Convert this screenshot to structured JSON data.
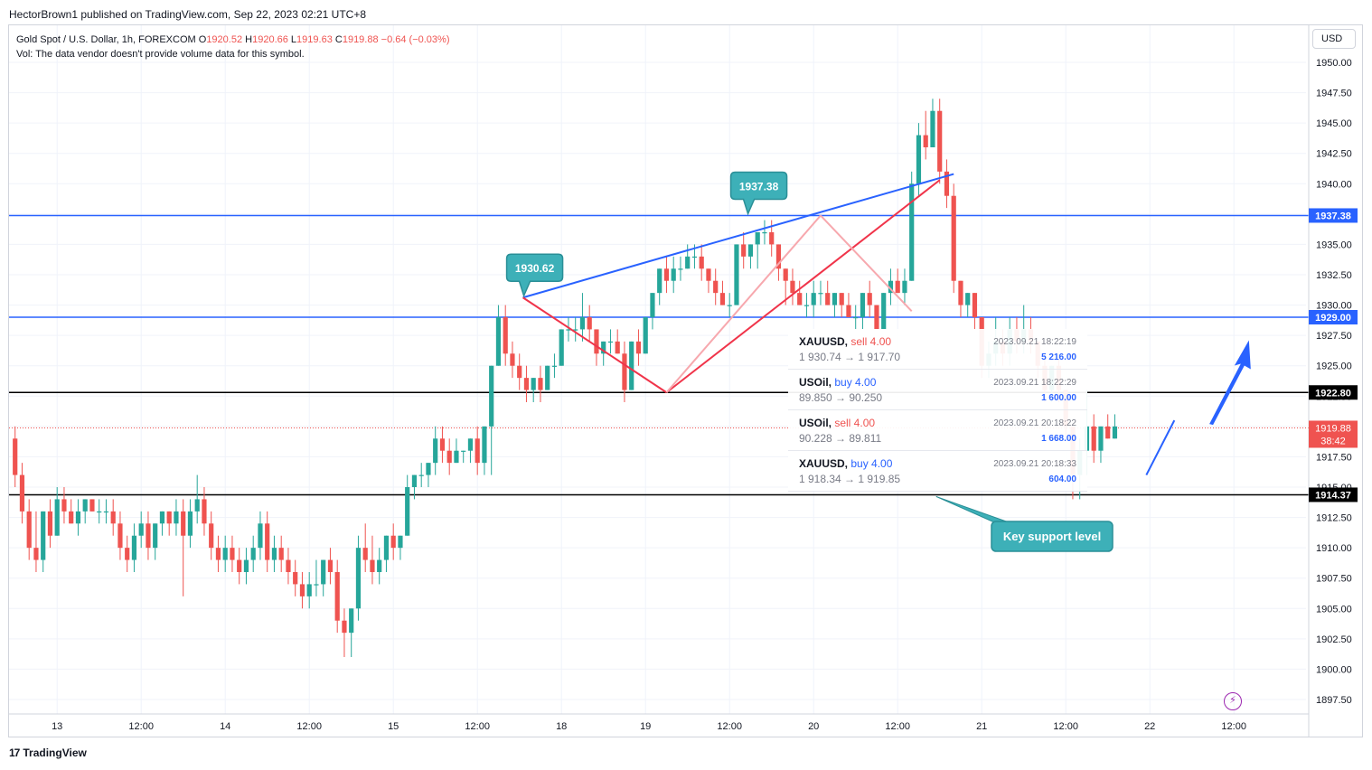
{
  "header": {
    "text": "HectorBrown1 published on TradingView.com, Sep 22, 2023 02:21 UTC+8"
  },
  "legend": {
    "symbol": "Gold Spot / U.S. Dollar, 1h, FOREXCOM",
    "open_label": "O",
    "open": "1920.52",
    "high_label": "H",
    "high": "1920.66",
    "low_label": "L",
    "low": "1919.63",
    "close_label": "C",
    "close": "1919.88",
    "change": "−0.64 (−0.03%)",
    "vol": "Vol: The data vendor doesn't provide volume data for this symbol."
  },
  "currency": "USD",
  "footer": {
    "brand": "TradingView",
    "mark": "17"
  },
  "colors": {
    "up": "#26a69a",
    "down": "#ef5350",
    "blue": "#2962ff",
    "teal_callout": "#3db0b8"
  },
  "chart_data": {
    "type": "candlestick",
    "timeframe": "1h",
    "y_range": [
      1896.0,
      1952.0
    ],
    "y_ticks": [
      "1950.00",
      "1947.50",
      "1945.00",
      "1942.50",
      "1940.00",
      "1937.50",
      "1935.00",
      "1932.50",
      "1930.00",
      "1927.50",
      "1925.00",
      "1922.50",
      "1920.00",
      "1917.50",
      "1915.00",
      "1912.50",
      "1910.00",
      "1907.50",
      "1905.00",
      "1902.50",
      "1900.00",
      "1897.50"
    ],
    "x_labels": [
      {
        "label": "13",
        "t": 6
      },
      {
        "label": "12:00",
        "t": 18
      },
      {
        "label": "14",
        "t": 30
      },
      {
        "label": "12:00",
        "t": 42
      },
      {
        "label": "15",
        "t": 54
      },
      {
        "label": "12:00",
        "t": 66
      },
      {
        "label": "18",
        "t": 78
      },
      {
        "label": "19",
        "t": 90
      },
      {
        "label": "12:00",
        "t": 102
      },
      {
        "label": "20",
        "t": 114
      },
      {
        "label": "12:00",
        "t": 126
      },
      {
        "label": "21",
        "t": 138
      },
      {
        "label": "12:00",
        "t": 150
      },
      {
        "label": "22",
        "t": 162
      },
      {
        "label": "12:00",
        "t": 174
      }
    ],
    "candles": [
      [
        1919,
        1920,
        1915,
        1916
      ],
      [
        1916,
        1917,
        1912,
        1913
      ],
      [
        1913,
        1914,
        1909,
        1910
      ],
      [
        1910,
        1913,
        1908,
        1909
      ],
      [
        1909,
        1913,
        1908,
        1913
      ],
      [
        1913,
        1914,
        1910,
        1911
      ],
      [
        1911,
        1915,
        1911,
        1914
      ],
      [
        1914,
        1915,
        1912,
        1913
      ],
      [
        1913,
        1914,
        1912,
        1912
      ],
      [
        1912,
        1914,
        1911,
        1913
      ],
      [
        1913,
        1914,
        1912,
        1914
      ],
      [
        1914,
        1914,
        1913,
        1913
      ],
      [
        1913,
        1914,
        1912,
        1913
      ],
      [
        1913,
        1914,
        1912,
        1913
      ],
      [
        1913,
        1914,
        1911,
        1912
      ],
      [
        1912,
        1913,
        1909,
        1910
      ],
      [
        1910,
        1911,
        1908,
        1909
      ],
      [
        1909,
        1912,
        1908,
        1911
      ],
      [
        1911,
        1913,
        1910,
        1912
      ],
      [
        1912,
        1913,
        1909,
        1910
      ],
      [
        1910,
        1912,
        1909,
        1912
      ],
      [
        1912,
        1913,
        1911,
        1913
      ],
      [
        1913,
        1913,
        1911,
        1912
      ],
      [
        1912,
        1914,
        1911,
        1913
      ],
      [
        1913,
        1914,
        1906,
        1911
      ],
      [
        1911,
        1914,
        1910,
        1913
      ],
      [
        1913,
        1916,
        1912,
        1914
      ],
      [
        1914,
        1915,
        1911,
        1912
      ],
      [
        1912,
        1913,
        1909,
        1910
      ],
      [
        1910,
        1911,
        1908,
        1909
      ],
      [
        1909,
        1911,
        1908,
        1910
      ],
      [
        1910,
        1911,
        1908,
        1909
      ],
      [
        1909,
        1910,
        1907,
        1908
      ],
      [
        1908,
        1910,
        1907,
        1909
      ],
      [
        1909,
        1911,
        1908,
        1910
      ],
      [
        1910,
        1913,
        1909,
        1912
      ],
      [
        1912,
        1913,
        1908,
        1909
      ],
      [
        1909,
        1911,
        1908,
        1910
      ],
      [
        1910,
        1911,
        1908,
        1909
      ],
      [
        1909,
        1910,
        1907,
        1908
      ],
      [
        1908,
        1909,
        1906,
        1907
      ],
      [
        1907,
        1908,
        1905,
        1906
      ],
      [
        1906,
        1908,
        1905,
        1907
      ],
      [
        1907,
        1909,
        1906,
        1907
      ],
      [
        1907,
        1909,
        1906,
        1909
      ],
      [
        1909,
        1910,
        1907,
        1908
      ],
      [
        1908,
        1909,
        1903,
        1904
      ],
      [
        1904,
        1905,
        1901,
        1903
      ],
      [
        1903,
        1905,
        1901,
        1905
      ],
      [
        1905,
        1911,
        1904,
        1910
      ],
      [
        1910,
        1912,
        1908,
        1909
      ],
      [
        1909,
        1911,
        1907,
        1908
      ],
      [
        1908,
        1910,
        1907,
        1909
      ],
      [
        1909,
        1911,
        1908,
        1911
      ],
      [
        1911,
        1912,
        1909,
        1910
      ],
      [
        1910,
        1911,
        1909,
        1911
      ],
      [
        1911,
        1916,
        1911,
        1915
      ],
      [
        1915,
        1916,
        1914,
        1916
      ],
      [
        1916,
        1917,
        1915,
        1916
      ],
      [
        1916,
        1917,
        1915,
        1917
      ],
      [
        1917,
        1920,
        1916,
        1919
      ],
      [
        1919,
        1920,
        1917,
        1918
      ],
      [
        1918,
        1919,
        1916,
        1917
      ],
      [
        1917,
        1919,
        1917,
        1918
      ],
      [
        1918,
        1918,
        1917,
        1918
      ],
      [
        1918,
        1919,
        1917,
        1919
      ],
      [
        1919,
        1920,
        1916,
        1917
      ],
      [
        1917,
        1920,
        1916,
        1920
      ],
      [
        1920,
        1925,
        1916,
        1925
      ],
      [
        1925,
        1930,
        1925,
        1929
      ],
      [
        1929,
        1930,
        1925,
        1926
      ],
      [
        1926,
        1927,
        1924,
        1925
      ],
      [
        1925,
        1926,
        1923,
        1924
      ],
      [
        1924,
        1925,
        1922,
        1923
      ],
      [
        1923,
        1924,
        1922,
        1924
      ],
      [
        1924,
        1925,
        1922,
        1923
      ],
      [
        1923,
        1925,
        1923,
        1925
      ],
      [
        1925,
        1926,
        1924,
        1925
      ],
      [
        1925,
        1928,
        1925,
        1928
      ],
      [
        1928,
        1929,
        1927,
        1928
      ],
      [
        1928,
        1929,
        1927,
        1928
      ],
      [
        1928,
        1931,
        1927,
        1929
      ],
      [
        1929,
        1930,
        1927,
        1928
      ],
      [
        1928,
        1928,
        1925,
        1926
      ],
      [
        1926,
        1927,
        1925,
        1927
      ],
      [
        1927,
        1928,
        1926,
        1927
      ],
      [
        1927,
        1928,
        1926,
        1926
      ],
      [
        1926,
        1927,
        1922,
        1923
      ],
      [
        1923,
        1927,
        1923,
        1927
      ],
      [
        1927,
        1928,
        1925,
        1926
      ],
      [
        1926,
        1929,
        1926,
        1929
      ],
      [
        1929,
        1931,
        1928,
        1931
      ],
      [
        1931,
        1933,
        1930,
        1933
      ],
      [
        1933,
        1934,
        1931,
        1932
      ],
      [
        1932,
        1934,
        1931,
        1933
      ],
      [
        1933,
        1934,
        1932,
        1933
      ],
      [
        1933,
        1935,
        1933,
        1934
      ],
      [
        1934,
        1935,
        1933,
        1934
      ],
      [
        1934,
        1935,
        1932,
        1933
      ],
      [
        1933,
        1933,
        1931,
        1932
      ],
      [
        1932,
        1933,
        1930,
        1931
      ],
      [
        1931,
        1932,
        1930,
        1930
      ],
      [
        1930,
        1931,
        1929,
        1930
      ],
      [
        1930,
        1935,
        1930,
        1935
      ],
      [
        1935,
        1936,
        1933,
        1934
      ],
      [
        1934,
        1935,
        1933,
        1935
      ],
      [
        1935,
        1936,
        1933,
        1936
      ],
      [
        1936,
        1937,
        1935,
        1936
      ],
      [
        1936,
        1937,
        1934,
        1935
      ],
      [
        1935,
        1935,
        1932,
        1933
      ],
      [
        1933,
        1933,
        1930,
        1932
      ],
      [
        1932,
        1933,
        1930,
        1931
      ],
      [
        1931,
        1932,
        1930,
        1930
      ],
      [
        1930,
        1931,
        1929,
        1930
      ],
      [
        1930,
        1932,
        1929,
        1931
      ],
      [
        1931,
        1932,
        1930,
        1931
      ],
      [
        1931,
        1932,
        1930,
        1930
      ],
      [
        1930,
        1931,
        1929,
        1931
      ],
      [
        1931,
        1931,
        1929,
        1930
      ],
      [
        1930,
        1931,
        1929,
        1929
      ],
      [
        1929,
        1930,
        1928,
        1929
      ],
      [
        1929,
        1931,
        1928,
        1931
      ],
      [
        1931,
        1932,
        1929,
        1930
      ],
      [
        1930,
        1930,
        1928,
        1928
      ],
      [
        1928,
        1931,
        1928,
        1931
      ],
      [
        1931,
        1933,
        1930,
        1932
      ],
      [
        1932,
        1933,
        1931,
        1931
      ],
      [
        1931,
        1933,
        1930,
        1932
      ],
      [
        1932,
        1941,
        1932,
        1940
      ],
      [
        1940,
        1945,
        1939,
        1944
      ],
      [
        1944,
        1946,
        1942,
        1943
      ],
      [
        1943,
        1947,
        1943,
        1946
      ],
      [
        1946,
        1947,
        1940,
        1941
      ],
      [
        1941,
        1942,
        1938,
        1939
      ],
      [
        1939,
        1940,
        1931,
        1932
      ],
      [
        1932,
        1932,
        1929,
        1930
      ],
      [
        1930,
        1931,
        1929,
        1931
      ],
      [
        1931,
        1931,
        1928,
        1929
      ],
      [
        1929,
        1929,
        1924,
        1925
      ],
      [
        1925,
        1927,
        1924,
        1926
      ],
      [
        1926,
        1929,
        1925,
        1927
      ],
      [
        1927,
        1928,
        1925,
        1926
      ],
      [
        1926,
        1929,
        1925,
        1928
      ],
      [
        1928,
        1929,
        1926,
        1927
      ],
      [
        1927,
        1930,
        1926,
        1928
      ],
      [
        1928,
        1929,
        1926,
        1927
      ],
      [
        1927,
        1927,
        1924,
        1925
      ],
      [
        1925,
        1926,
        1922,
        1923
      ],
      [
        1923,
        1925,
        1922,
        1925
      ],
      [
        1925,
        1926,
        1922,
        1923
      ],
      [
        1923,
        1923,
        1919,
        1920
      ],
      [
        1920,
        1920,
        1914,
        1916
      ],
      [
        1916,
        1919,
        1914,
        1918
      ],
      [
        1918,
        1923,
        1916,
        1920
      ],
      [
        1920,
        1921,
        1917,
        1918
      ],
      [
        1918,
        1920,
        1917,
        1920
      ],
      [
        1920,
        1921,
        1919,
        1919
      ],
      [
        1919,
        1921,
        1919,
        1920
      ]
    ],
    "horizontal_levels": [
      {
        "price": 1937.38,
        "label": "1937.38",
        "color": "blue"
      },
      {
        "price": 1929.0,
        "label": "1929.00",
        "color": "blue"
      },
      {
        "price": 1922.8,
        "label": "1922.80",
        "color": "black"
      },
      {
        "price": 1914.37,
        "label": "1914.37",
        "color": "black"
      }
    ],
    "last_price": {
      "price": 1919.88,
      "label": "1919.88",
      "countdown": "38:42"
    },
    "callouts": [
      {
        "text": "1930.62",
        "t": 72.5,
        "price": 1930.62
      },
      {
        "text": "1937.38",
        "t": 104.5,
        "price": 1937.38
      }
    ],
    "annotation": {
      "text": "Key support level"
    },
    "trendlines": [
      {
        "t1": 72.5,
        "p1": 1930.62,
        "t2": 134,
        "p2": 1940.8,
        "color": "blue"
      },
      {
        "t1": 72.5,
        "p1": 1930.62,
        "t2": 93,
        "p2": 1922.8,
        "color": "red"
      },
      {
        "t1": 93,
        "p1": 1922.8,
        "t2": 132,
        "p2": 1940.3,
        "color": "red"
      },
      {
        "t1": 93,
        "p1": 1922.8,
        "t2": 115,
        "p2": 1937.38,
        "color": "pink"
      },
      {
        "t1": 115,
        "p1": 1937.38,
        "t2": 128,
        "p2": 1929.5,
        "color": "pink"
      },
      {
        "t1": 161.5,
        "p1": 1916.0,
        "t2": 165.5,
        "p2": 1920.5,
        "color": "blue"
      }
    ],
    "trades": [
      {
        "symbol": "XAUUSD,",
        "side": "sell",
        "qty": "4.00",
        "prices": "1 930.74 → 1 917.70",
        "time": "2023.09.21 18:22:19",
        "amount": "5 216.00"
      },
      {
        "symbol": "USOil,",
        "side": "buy",
        "qty": "4.00",
        "prices": "89.850 → 90.250",
        "time": "2023.09.21 18:22:29",
        "amount": "1 600.00"
      },
      {
        "symbol": "USOil,",
        "side": "sell",
        "qty": "4.00",
        "prices": "90.228 → 89.811",
        "time": "2023.09.21 20:18:22",
        "amount": "1 668.00"
      },
      {
        "symbol": "XAUUSD,",
        "side": "buy",
        "qty": "4.00",
        "prices": "1 918.34 → 1 919.85",
        "time": "2023.09.21 20:18:33",
        "amount": "604.00"
      }
    ]
  }
}
